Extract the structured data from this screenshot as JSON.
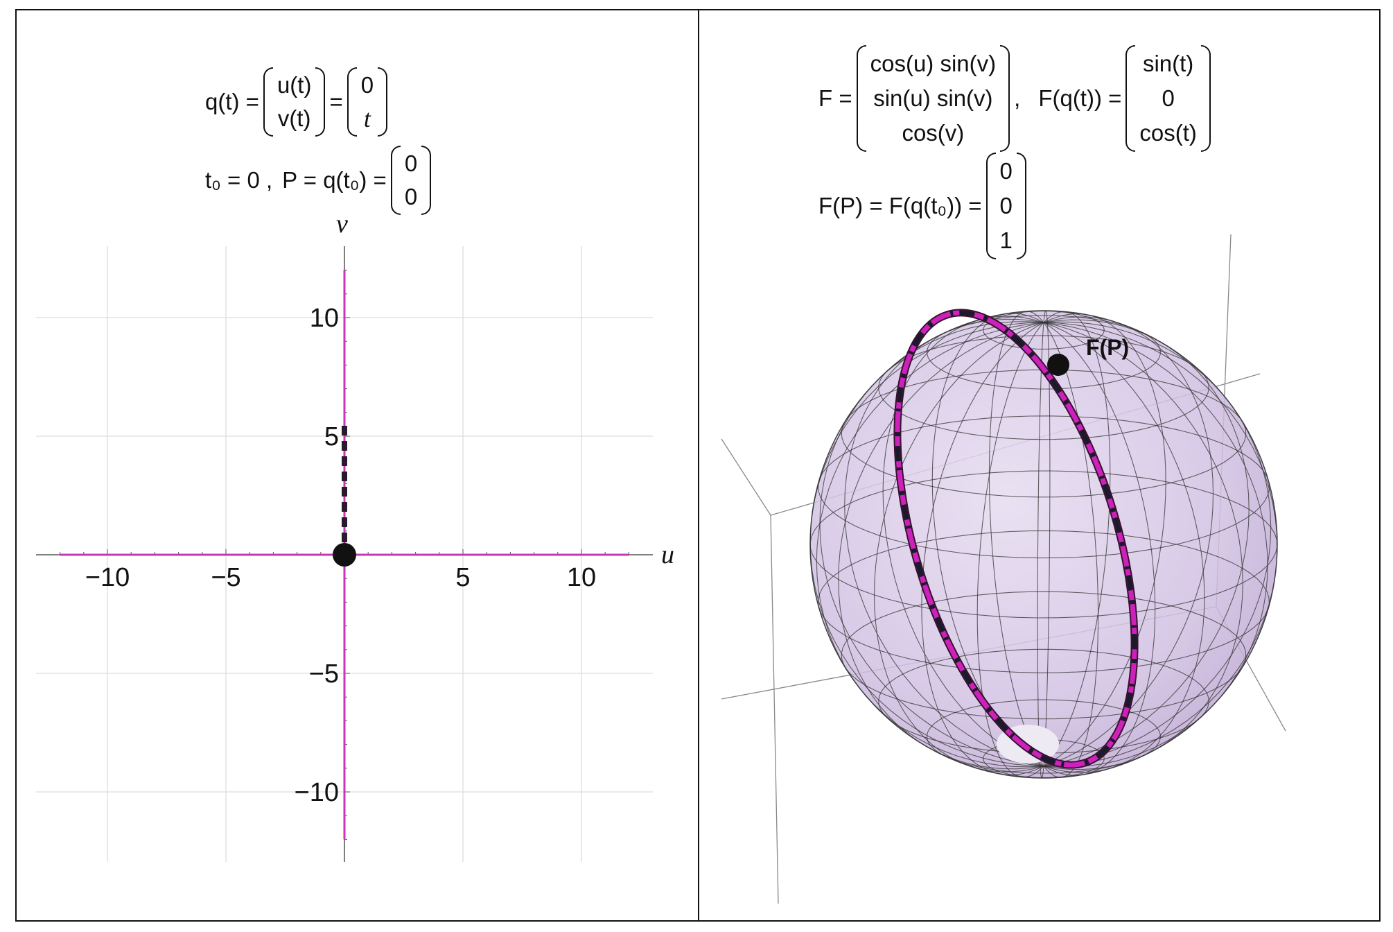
{
  "left": {
    "formula1": {
      "lhs": "q(t) =",
      "vec_names": [
        "u(t)",
        "v(t)"
      ],
      "eq": "=",
      "vec_values": [
        "0",
        "t"
      ]
    },
    "formula2": {
      "t0": "t₀ = 0 ,",
      "P_eq": "P = q(t₀) =",
      "vec": [
        "0",
        "0"
      ]
    },
    "plot": {
      "x_label": "u",
      "y_label": "v",
      "x_ticks": [
        {
          "value": -10,
          "label": "−10"
        },
        {
          "value": -5,
          "label": "−5"
        },
        {
          "value": 5,
          "label": "5"
        },
        {
          "value": 10,
          "label": "10"
        }
      ],
      "y_ticks": [
        {
          "value": 10,
          "label": "10"
        },
        {
          "value": 5,
          "label": "5"
        },
        {
          "value": -5,
          "label": "−5"
        },
        {
          "value": -10,
          "label": "−10"
        }
      ],
      "gridlines": [
        -10,
        -5,
        5,
        10
      ],
      "range": [
        -13,
        13
      ],
      "curve_extent": [
        -12,
        12
      ],
      "point": [
        0,
        0
      ],
      "dashed_segment": [
        0,
        5.5
      ],
      "colors": {
        "curve": "#cc33bb",
        "point": "#111111",
        "grid": "#dddddd"
      }
    }
  },
  "right": {
    "formula1": {
      "F_label": "F =",
      "F_vec": [
        "cos(u) sin(v)",
        "sin(u) sin(v)",
        "cos(v)"
      ],
      "comma": ",",
      "Fq_label": "F(q(t)) =",
      "Fq_vec": [
        "sin(t)",
        "0",
        "cos(t)"
      ]
    },
    "formula2": {
      "lhs": "F(P) = F(q(t₀)) =",
      "vec": [
        "0",
        "0",
        "1"
      ]
    },
    "sphere": {
      "point_label": "F(P)",
      "colors": {
        "fill": "#d6c3e6",
        "mesh": "#2a2a2a",
        "curve": "#cc22bb",
        "dash": "#1a1a2a",
        "box": "#777777"
      }
    }
  }
}
